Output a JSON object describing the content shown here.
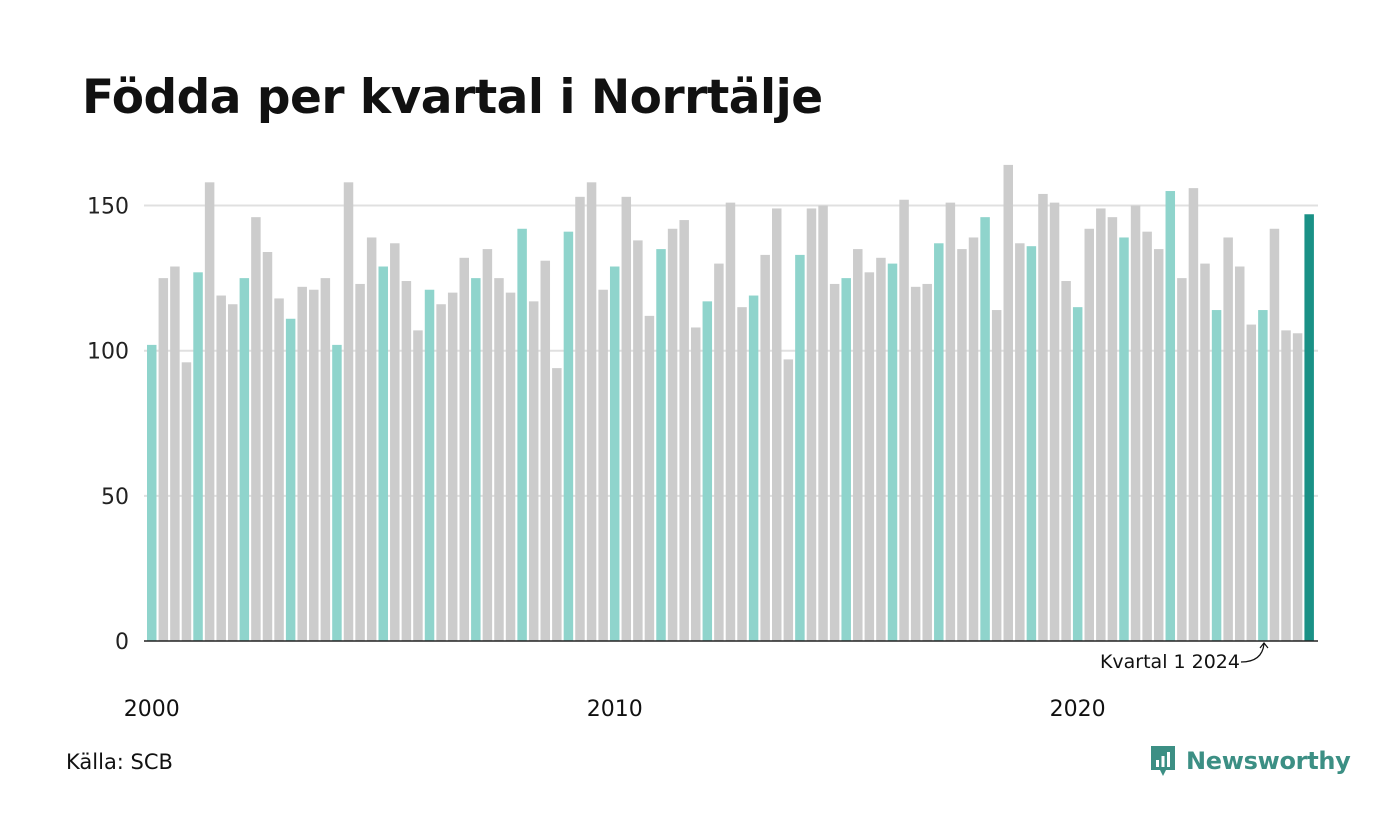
{
  "chart_data": {
    "type": "bar",
    "title": "Födda per kvartal i Norrtälje",
    "xlabel": "",
    "ylabel": "",
    "ylim": [
      0,
      165
    ],
    "yticks": [
      0,
      50,
      100,
      150
    ],
    "xtick_labels": [
      "2000",
      "2010",
      "2020"
    ],
    "grid": true,
    "start": {
      "year": 2000,
      "quarter": 1
    },
    "values": [
      102,
      125,
      129,
      96,
      127,
      158,
      119,
      116,
      125,
      146,
      134,
      118,
      111,
      122,
      121,
      125,
      102,
      158,
      123,
      139,
      129,
      137,
      124,
      107,
      121,
      116,
      120,
      132,
      125,
      135,
      125,
      120,
      142,
      117,
      131,
      94,
      141,
      153,
      158,
      121,
      129,
      153,
      138,
      112,
      135,
      142,
      145,
      108,
      117,
      130,
      151,
      115,
      119,
      133,
      149,
      97,
      133,
      149,
      150,
      123,
      125,
      135,
      127,
      132,
      130,
      152,
      122,
      123,
      137,
      151,
      135,
      139,
      146,
      114,
      164,
      137,
      136,
      154,
      151,
      124,
      115,
      142,
      149,
      146,
      139,
      150,
      141,
      135,
      155,
      125,
      156,
      130,
      114,
      139,
      129,
      109,
      114,
      142,
      107,
      106,
      147
    ],
    "colors": {
      "q1": "#8fd4cc",
      "other": "#cccccc",
      "latest": "#1a9186",
      "axis": "#222222",
      "grid": "#e0e0e0"
    },
    "annotation": "Kvartal 1 2024"
  },
  "source": "Källa: SCB",
  "brand": {
    "name": "Newsworthy",
    "icon": "newsworthy-logo-icon",
    "color": "#3c8f84"
  }
}
